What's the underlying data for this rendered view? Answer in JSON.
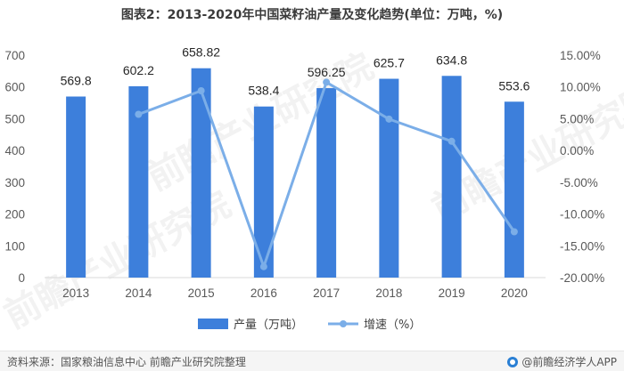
{
  "title": "图表2：2013-2020年中国菜籽油产量及变化趋势(单位：万吨，%)",
  "source": "资料来源：国家粮油信息中心 前瞻产业研究院整理",
  "brand": "@前瞻经济学人APP",
  "watermark": "前瞻产业研究院",
  "chart_data": {
    "type": "bar",
    "categories": [
      "2013",
      "2014",
      "2015",
      "2016",
      "2017",
      "2018",
      "2019",
      "2020"
    ],
    "series": [
      {
        "name": "产量（万吨）",
        "type": "bar",
        "axis": "left",
        "values": [
          569.8,
          602.2,
          658.82,
          538.4,
          596.25,
          625.7,
          634.8,
          553.6
        ],
        "labels": [
          "569.8",
          "602.2",
          "658.82",
          "538.4",
          "596.25",
          "625.7",
          "634.8",
          "553.6"
        ]
      },
      {
        "name": "增速（%）",
        "type": "line",
        "axis": "right",
        "values": [
          null,
          5.69,
          9.4,
          -18.28,
          10.74,
          4.94,
          1.45,
          -12.79
        ]
      }
    ],
    "left_axis": {
      "min": 0,
      "max": 700,
      "ticks": [
        "0",
        "100",
        "200",
        "300",
        "400",
        "500",
        "600",
        "700"
      ]
    },
    "right_axis": {
      "min": -20,
      "max": 15,
      "ticks": [
        "-20.00%",
        "-15.00%",
        "-10.00%",
        "-5.00%",
        "0.00%",
        "5.00%",
        "10.00%",
        "15.00%"
      ]
    },
    "colors": {
      "bar": "#3d7fdb",
      "line": "#7baee8"
    },
    "legend_position": "bottom",
    "grid": false
  }
}
